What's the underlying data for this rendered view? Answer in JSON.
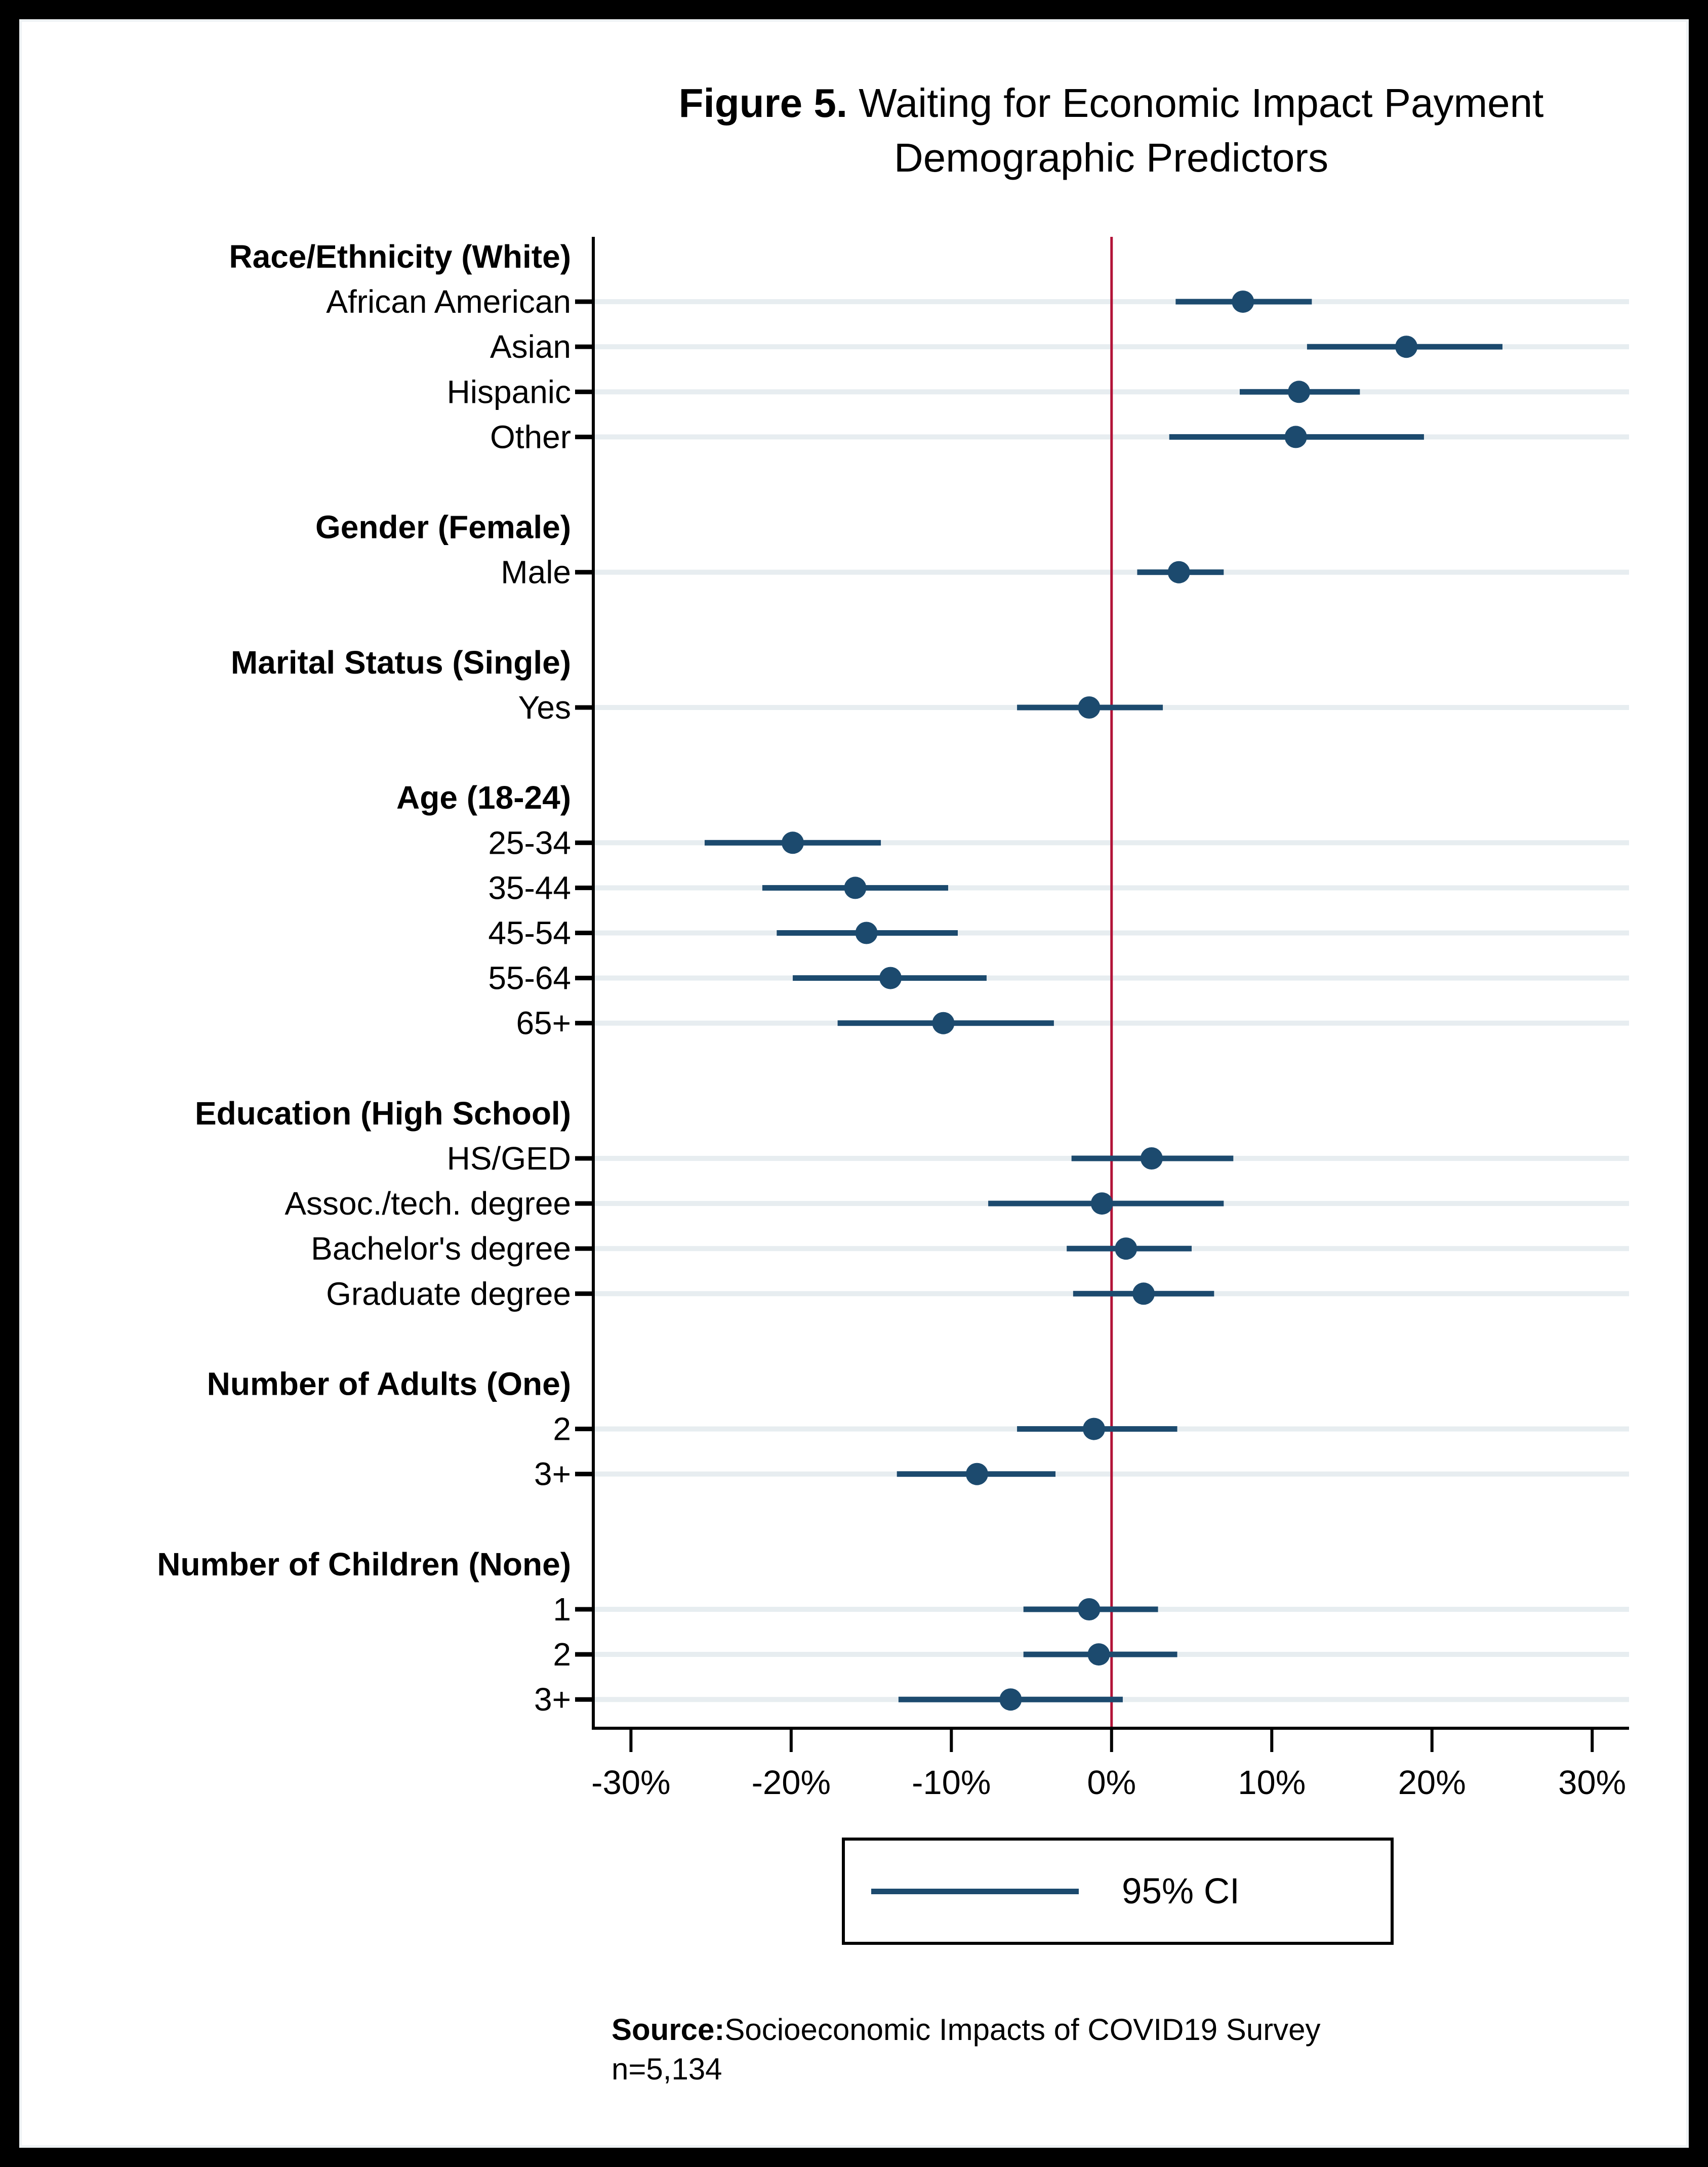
{
  "figure": {
    "title_prefix": "Figure 5.",
    "title_rest": " Waiting for Economic Impact Payment",
    "title_line2": "Demographic Predictors"
  },
  "legend": {
    "label": "95% CI"
  },
  "source": {
    "prefix": "Source:",
    "text": "Socioeconomic Impacts of COVID19 Survey",
    "sample_size": "n=5,134"
  },
  "colors": {
    "marker": "#1c4a6e",
    "zero_line": "#b21237",
    "gridline": "#e7edf0",
    "axis": "#000000",
    "background": "#ffffff",
    "frame": "#000000"
  },
  "chart_data": {
    "type": "scatter",
    "subtype": "coefficient-dot-with-95ci",
    "orientation": "horizontal",
    "unit": "%",
    "x_ticks": [
      -30,
      -20,
      -10,
      0,
      10,
      20,
      30
    ],
    "x_tick_labels": [
      "-30%",
      "-20%",
      "-10%",
      "0%",
      "10%",
      "20%",
      "30%"
    ],
    "xlim": [
      -32.35,
      32.3
    ],
    "zero_reference_line": 0,
    "grid": "horizontal-row-bands",
    "legend_position": "bottom-center",
    "groups": [
      {
        "header": "Race/Ethnicity (White)",
        "items": [
          {
            "label": "African American",
            "value": 8.2,
            "ci_low": 4.0,
            "ci_high": 12.5
          },
          {
            "label": "Asian",
            "value": 18.4,
            "ci_low": 12.2,
            "ci_high": 24.4
          },
          {
            "label": "Hispanic",
            "value": 11.7,
            "ci_low": 8.0,
            "ci_high": 15.5
          },
          {
            "label": "Other",
            "value": 11.5,
            "ci_low": 3.6,
            "ci_high": 19.5
          }
        ]
      },
      {
        "header": "Gender (Female)",
        "items": [
          {
            "label": "Male",
            "value": 4.2,
            "ci_low": 1.6,
            "ci_high": 7.0
          }
        ]
      },
      {
        "header": "Marital Status (Single)",
        "items": [
          {
            "label": "Yes",
            "value": -1.4,
            "ci_low": -5.9,
            "ci_high": 3.2
          }
        ]
      },
      {
        "header": "Age (18-24)",
        "items": [
          {
            "label": "25-34",
            "value": -19.9,
            "ci_low": -25.4,
            "ci_high": -14.4
          },
          {
            "label": "35-44",
            "value": -16.0,
            "ci_low": -21.8,
            "ci_high": -10.2
          },
          {
            "label": "45-54",
            "value": -15.3,
            "ci_low": -20.9,
            "ci_high": -9.6
          },
          {
            "label": "55-64",
            "value": -13.8,
            "ci_low": -19.9,
            "ci_high": -7.8
          },
          {
            "label": "65+",
            "value": -10.5,
            "ci_low": -17.1,
            "ci_high": -3.6
          }
        ]
      },
      {
        "header": "Education (High School)",
        "items": [
          {
            "label": "HS/GED",
            "value": 2.5,
            "ci_low": -2.5,
            "ci_high": 7.6
          },
          {
            "label": "Assoc./tech. degree",
            "value": -0.6,
            "ci_low": -7.7,
            "ci_high": 7.0
          },
          {
            "label": "Bachelor's degree",
            "value": 0.9,
            "ci_low": -2.8,
            "ci_high": 5.0
          },
          {
            "label": "Graduate degree",
            "value": 2.0,
            "ci_low": -2.4,
            "ci_high": 6.4
          }
        ]
      },
      {
        "header": "Number of Adults (One)",
        "items": [
          {
            "label": "2",
            "value": -1.1,
            "ci_low": -5.9,
            "ci_high": 4.1
          },
          {
            "label": "3+",
            "value": -8.4,
            "ci_low": -13.4,
            "ci_high": -3.5
          }
        ]
      },
      {
        "header": "Number of Children (None)",
        "items": [
          {
            "label": "1",
            "value": -1.4,
            "ci_low": -5.5,
            "ci_high": 2.9
          },
          {
            "label": "2",
            "value": -0.8,
            "ci_low": -5.5,
            "ci_high": 4.1
          },
          {
            "label": "3+",
            "value": -6.3,
            "ci_low": -13.3,
            "ci_high": 0.7
          }
        ]
      }
    ]
  }
}
